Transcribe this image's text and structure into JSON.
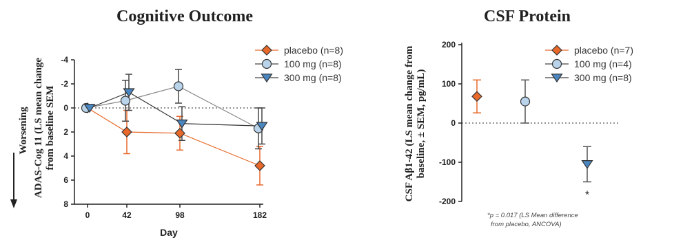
{
  "colors": {
    "placebo": "#e8692a",
    "mg100": "#b9d4ea",
    "mg300": "#4a86c0",
    "axis": "#222222",
    "grey": "#888888"
  },
  "chart_data": [
    {
      "type": "line",
      "title": "Cognitive Outcome",
      "xlabel": "Day",
      "ylabel_lines": [
        "ADAS-Cog 11 (LS mean change",
        "from baseline SEM"
      ],
      "ylabel_side": "Worsening",
      "x_categories": [
        "0",
        "42",
        "98",
        "182"
      ],
      "y_ticks": [
        "-4",
        "-2",
        "0",
        "2",
        "4",
        "6",
        "8"
      ],
      "ylim": [
        -4,
        8
      ],
      "y_inverted": true,
      "reference_line": 0,
      "series": [
        {
          "name": "placebo (n=8)",
          "marker": "diamond",
          "color": "placebo",
          "y": [
            0,
            2.0,
            2.1,
            4.8
          ],
          "err": [
            0,
            1.8,
            1.4,
            1.6
          ]
        },
        {
          "name": "100 mg (n=8)",
          "marker": "circle",
          "color": "mg100",
          "y": [
            0,
            -0.6,
            -1.8,
            1.7
          ],
          "err": [
            0,
            1.7,
            1.4,
            1.7
          ]
        },
        {
          "name": "300 mg (n=8)",
          "marker": "triangle-down",
          "color": "mg300",
          "y": [
            0,
            -1.3,
            1.3,
            1.5
          ],
          "err": [
            0,
            1.5,
            1.4,
            1.5
          ]
        }
      ]
    },
    {
      "type": "scatter",
      "title": "CSF Protein",
      "ylabel_lines": [
        "CSF Aβ1-42 (LS mean change from",
        "baseline, ± SEM, pg/mL)"
      ],
      "y_ticks": [
        "200",
        "100",
        "0",
        "-100",
        "-200"
      ],
      "ylim": [
        -200,
        200
      ],
      "reference_line": 0,
      "series": [
        {
          "name": "placebo (n=7)",
          "marker": "diamond",
          "color": "placebo",
          "y": 68,
          "err": 42
        },
        {
          "name": "100 mg (n=4)",
          "marker": "circle",
          "color": "mg100",
          "y": 55,
          "err": 55
        },
        {
          "name": "300 mg (n=8)",
          "marker": "triangle-down",
          "color": "mg300",
          "y": -105,
          "err": 45,
          "annotation": "*"
        }
      ],
      "footnote_lines": [
        "*p = 0.017 (LS Mean difference",
        "from placebo, ANCOVA)"
      ]
    }
  ]
}
